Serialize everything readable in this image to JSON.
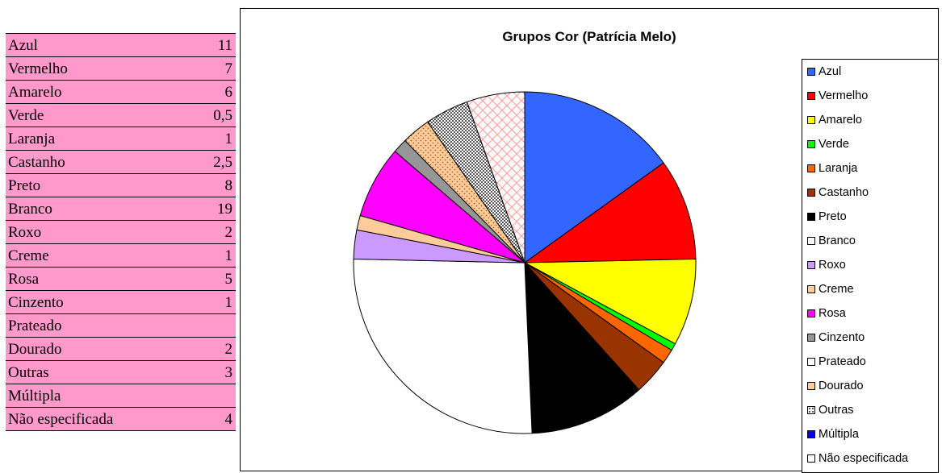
{
  "chart_data": {
    "type": "pie",
    "title": "Grupos Cor (Patrícia Melo)",
    "categories": [
      "Azul",
      "Vermelho",
      "Amarelo",
      "Verde",
      "Laranja",
      "Castanho",
      "Preto",
      "Branco",
      "Roxo",
      "Creme",
      "Rosa",
      "Cinzento",
      "Prateado",
      "Dourado",
      "Outras",
      "Múltipla",
      "Não especificada"
    ],
    "values": [
      11,
      7,
      6,
      0.5,
      1,
      2.5,
      8,
      19,
      2,
      1,
      5,
      1,
      0,
      2,
      3,
      0,
      4
    ],
    "display_values": [
      "11",
      "7",
      "6",
      "0,5",
      "1",
      "2,5",
      "8",
      "19",
      "2",
      "1",
      "5",
      "1",
      "",
      "2",
      "3",
      "",
      "4"
    ],
    "colors": [
      "#3366ff",
      "#ff0000",
      "#ffff00",
      "#00ff00",
      "#ff6600",
      "#993300",
      "#000000",
      "#ffffff",
      "#cc99ff",
      "#ffcc99",
      "#ff00ff",
      "#969696",
      "#ffffff",
      "#ffcc99",
      "#ffffff",
      "#0000ff",
      "#ffffff"
    ],
    "patterns": [
      "",
      "",
      "",
      "",
      "",
      "",
      "",
      "",
      "",
      "",
      "",
      "",
      "",
      "dots",
      "checker",
      "",
      "pink-lattice"
    ],
    "legend_placement": "right"
  }
}
